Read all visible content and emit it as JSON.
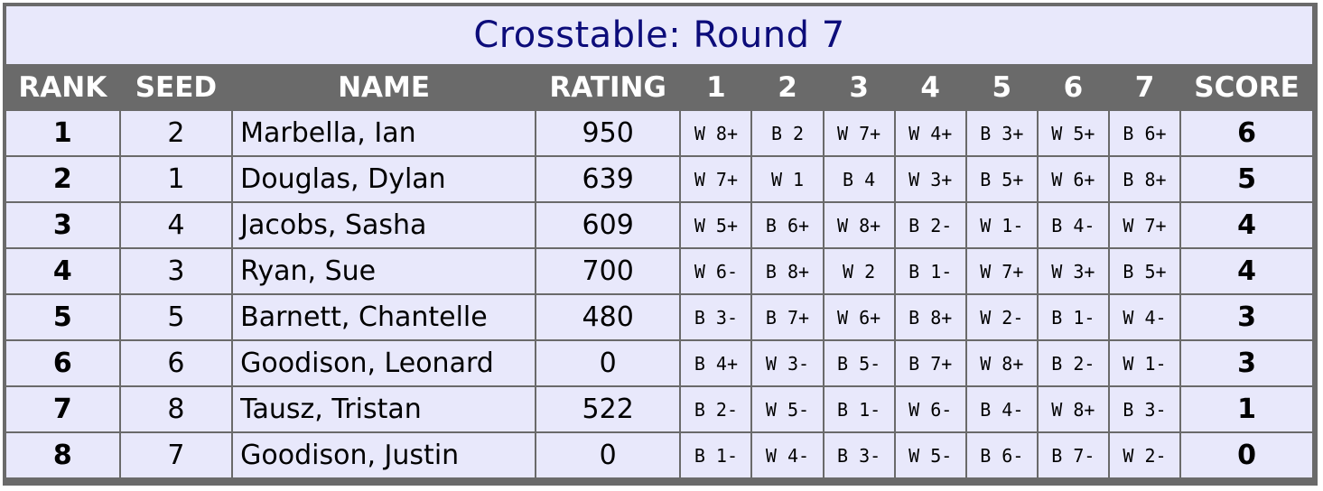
{
  "title": "Crosstable: Round 7",
  "headers": {
    "rank": "RANK",
    "seed": "SEED",
    "name": "NAME",
    "rating": "RATING",
    "rounds": [
      "1",
      "2",
      "3",
      "4",
      "5",
      "6",
      "7"
    ],
    "score": "SCORE"
  },
  "rows": [
    {
      "rank": "1",
      "seed": "2",
      "name": "Marbella, Ian",
      "rating": "950",
      "results": [
        "W 8+",
        "B 2",
        "W 7+",
        "W 4+",
        "B 3+",
        "W 5+",
        "B 6+"
      ],
      "score": "6"
    },
    {
      "rank": "2",
      "seed": "1",
      "name": "Douglas, Dylan",
      "rating": "639",
      "results": [
        "W 7+",
        "W 1",
        "B 4",
        "W 3+",
        "B 5+",
        "W 6+",
        "B 8+"
      ],
      "score": "5"
    },
    {
      "rank": "3",
      "seed": "4",
      "name": "Jacobs, Sasha",
      "rating": "609",
      "results": [
        "W 5+",
        "B 6+",
        "W 8+",
        "B 2-",
        "W 1-",
        "B 4-",
        "W 7+"
      ],
      "score": "4"
    },
    {
      "rank": "4",
      "seed": "3",
      "name": "Ryan, Sue",
      "rating": "700",
      "results": [
        "W 6-",
        "B 8+",
        "W 2",
        "B 1-",
        "W 7+",
        "W 3+",
        "B 5+"
      ],
      "score": "4"
    },
    {
      "rank": "5",
      "seed": "5",
      "name": "Barnett, Chantelle",
      "rating": "480",
      "results": [
        "B 3-",
        "B 7+",
        "W 6+",
        "B 8+",
        "W 2-",
        "B 1-",
        "W 4-"
      ],
      "score": "3"
    },
    {
      "rank": "6",
      "seed": "6",
      "name": "Goodison, Leonard",
      "rating": "0",
      "results": [
        "B 4+",
        "W 3-",
        "B 5-",
        "B 7+",
        "W 8+",
        "B 2-",
        "W 1-"
      ],
      "score": "3"
    },
    {
      "rank": "7",
      "seed": "8",
      "name": "Tausz, Tristan",
      "rating": "522",
      "results": [
        "B 2-",
        "W 5-",
        "B 1-",
        "W 6-",
        "B 4-",
        "W 8+",
        "B 3-"
      ],
      "score": "1"
    },
    {
      "rank": "8",
      "seed": "7",
      "name": "Goodison, Justin",
      "rating": "0",
      "results": [
        "B 1-",
        "W 4-",
        "B 3-",
        "W 5-",
        "B 6-",
        "B 7-",
        "W 2-"
      ],
      "score": "0"
    }
  ]
}
